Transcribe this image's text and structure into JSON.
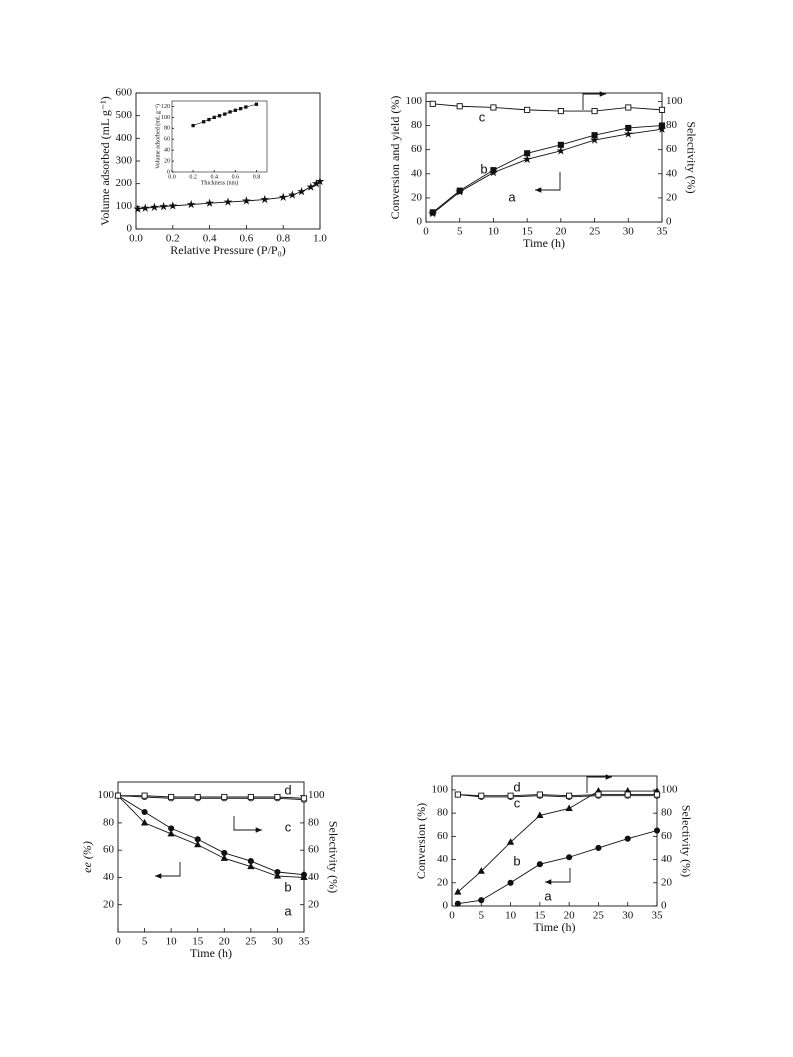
{
  "chart_data": [
    {
      "type": "line",
      "xlabel": "Relative Pressure (P/P₀)",
      "ylabel": "Volume adsorbed (mL g⁻¹)",
      "x": [
        0.01,
        0.05,
        0.1,
        0.15,
        0.2,
        0.3,
        0.4,
        0.5,
        0.6,
        0.7,
        0.8,
        0.85,
        0.9,
        0.95,
        0.98,
        1.0
      ],
      "xlim": [
        0,
        1
      ],
      "xticks": [
        {
          "value": 0,
          "label": "0.0"
        },
        0.2,
        0.4,
        0.6,
        0.8,
        {
          "value": 1,
          "label": "1.0"
        }
      ],
      "ylim": [
        0,
        600
      ],
      "yticks": [
        0,
        100,
        200,
        300,
        400,
        500,
        600
      ],
      "series": [
        {
          "marker": "star",
          "color": "#111111",
          "values": [
            88,
            92,
            96,
            99,
            102,
            108,
            114,
            119,
            124,
            130,
            140,
            150,
            165,
            185,
            200,
            210
          ]
        }
      ]
    },
    {
      "type": "line",
      "xlabel": "Thickness (nm)",
      "ylabel": "Volume adsorbed (mL g⁻¹)",
      "x": [
        0.2,
        0.3,
        0.35,
        0.4,
        0.45,
        0.5,
        0.55,
        0.6,
        0.65,
        0.7,
        0.8
      ],
      "xlim": [
        0,
        0.9
      ],
      "xticks": [
        {
          "value": 0,
          "label": "0.0"
        },
        0.2,
        0.4,
        0.6,
        0.8
      ],
      "ylim": [
        0,
        130
      ],
      "yticks": [
        0,
        20,
        40,
        60,
        80,
        100,
        120
      ],
      "series": [
        {
          "marker": "square",
          "color": "#111111",
          "values": [
            85,
            92,
            96,
            100,
            103,
            106,
            110,
            113,
            116,
            119,
            124
          ]
        }
      ]
    },
    {
      "type": "line",
      "xlabel": "Time (h)",
      "ylabel": "Conversion and yield (%)",
      "y2label": "Selectivity (%)",
      "x": [
        1,
        5,
        10,
        15,
        20,
        25,
        30,
        35
      ],
      "xlim": [
        0,
        35
      ],
      "xticks": [
        0,
        5,
        10,
        15,
        20,
        25,
        30,
        35
      ],
      "ylim": [
        0,
        107
      ],
      "yticks": [
        0,
        20,
        40,
        60,
        80,
        100
      ],
      "y2lim": [
        0,
        107
      ],
      "y2ticks": [
        0,
        20,
        40,
        60,
        80,
        100
      ],
      "series": [
        {
          "name": "a",
          "marker": "star",
          "color": "#111111",
          "values": [
            7,
            25,
            41,
            52,
            59,
            68,
            73,
            77
          ]
        },
        {
          "name": "b",
          "marker": "square",
          "color": "#111111",
          "values": [
            8,
            26,
            43,
            57,
            64,
            72,
            78,
            80
          ]
        },
        {
          "name": "c",
          "marker": "open-square",
          "color": "#111111",
          "axis": "y2",
          "values": [
            98,
            96,
            95,
            93,
            92,
            92,
            95,
            93
          ]
        }
      ]
    },
    {
      "type": "line",
      "xlabel": "Time (h)",
      "ylabel": "ee (%)",
      "y2label": "Selectivity (%)",
      "x": [
        0,
        5,
        10,
        15,
        20,
        25,
        30,
        35
      ],
      "xlim": [
        0,
        35
      ],
      "xticks": [
        0,
        5,
        10,
        15,
        20,
        25,
        30,
        35
      ],
      "ylim": [
        0,
        110
      ],
      "yticks": [
        20,
        40,
        60,
        80,
        100
      ],
      "y2lim": [
        0,
        110
      ],
      "y2ticks": [
        20,
        40,
        60,
        80,
        100
      ],
      "series": [
        {
          "name": "a",
          "marker": "triangle",
          "color": "#111111",
          "values": [
            100,
            80,
            72,
            64,
            54,
            48,
            41,
            40
          ]
        },
        {
          "name": "b",
          "marker": "circle",
          "color": "#111111",
          "values": [
            100,
            88,
            76,
            68,
            58,
            52,
            44,
            42
          ]
        },
        {
          "name": "c",
          "marker": "open-circle",
          "color": "#111111",
          "axis": "y2",
          "values": [
            100,
            99,
            98,
            98,
            98,
            98,
            98,
            97
          ]
        },
        {
          "name": "d",
          "marker": "open-square",
          "color": "#111111",
          "axis": "y2",
          "values": [
            100,
            100,
            99,
            99,
            99,
            99,
            99,
            98
          ]
        }
      ]
    },
    {
      "type": "line",
      "xlabel": "Time (h)",
      "ylabel": "Conversion (%)",
      "y2label": "Selectivity (%)",
      "x": [
        1,
        5,
        10,
        15,
        20,
        25,
        30,
        35
      ],
      "xlim": [
        0,
        35
      ],
      "xticks": [
        0,
        5,
        10,
        15,
        20,
        25,
        30,
        35
      ],
      "ylim": [
        0,
        112
      ],
      "yticks": [
        0,
        20,
        40,
        60,
        80,
        100
      ],
      "y2lim": [
        0,
        112
      ],
      "y2ticks": [
        0,
        20,
        40,
        60,
        80,
        100
      ],
      "series": [
        {
          "name": "a",
          "marker": "circle",
          "color": "#111111",
          "values": [
            2,
            5,
            20,
            36,
            42,
            50,
            58,
            65
          ]
        },
        {
          "name": "b",
          "marker": "triangle",
          "color": "#111111",
          "values": [
            12,
            30,
            55,
            78,
            84,
            99,
            99,
            99
          ]
        },
        {
          "name": "c",
          "marker": "open-circle",
          "color": "#111111",
          "axis": "y2",
          "values": [
            96,
            94,
            94,
            95,
            94,
            95,
            95,
            95
          ]
        },
        {
          "name": "d",
          "marker": "open-square",
          "color": "#111111",
          "axis": "y2",
          "values": [
            96,
            95,
            95,
            96,
            95,
            96,
            96,
            96
          ]
        }
      ]
    }
  ]
}
